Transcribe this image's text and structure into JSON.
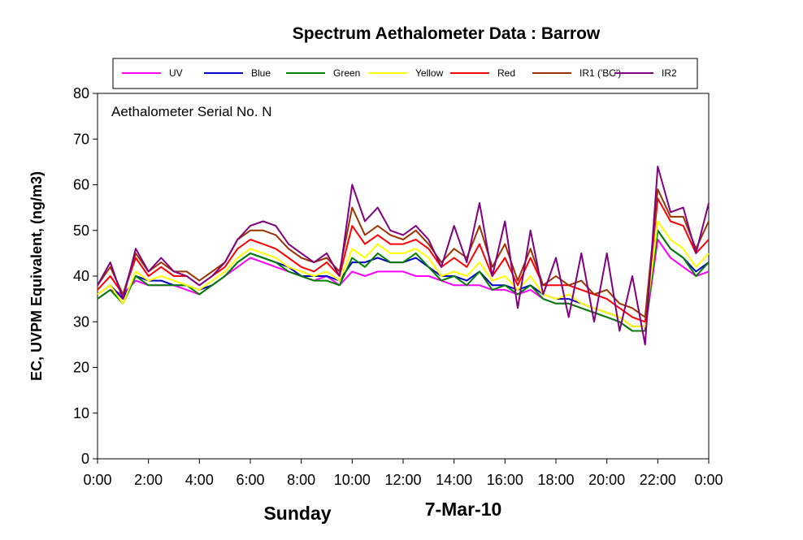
{
  "chart_data": {
    "type": "line",
    "title": "Spectrum Aethalometer Data  :  Barrow",
    "xlabel": "",
    "ylabel": "EC, UVPM Equivalent, (ng/m3)",
    "annotation": "Aethalometer  Serial No. N",
    "day_label": "Sunday",
    "date_label": "7-Mar-10",
    "ylim": [
      0,
      80
    ],
    "yticks": [
      0,
      10,
      20,
      30,
      40,
      50,
      60,
      70,
      80
    ],
    "xlim": [
      0,
      24
    ],
    "xtick_values": [
      0,
      2,
      4,
      6,
      8,
      10,
      12,
      14,
      16,
      18,
      20,
      22,
      24
    ],
    "xtick_labels": [
      "0:00",
      "2:00",
      "4:00",
      "6:00",
      "8:00",
      "10:00",
      "12:00",
      "14:00",
      "16:00",
      "18:00",
      "20:00",
      "22:00",
      "0:00"
    ],
    "grid": false,
    "legend_position": "top",
    "x_hours": [
      0,
      0.5,
      1,
      1.5,
      2,
      2.5,
      3,
      3.5,
      4,
      4.5,
      5,
      5.5,
      6,
      6.5,
      7,
      7.5,
      8,
      8.5,
      9,
      9.5,
      10,
      10.5,
      11,
      11.5,
      12,
      12.5,
      13,
      13.5,
      14,
      14.5,
      15,
      15.5,
      16,
      16.5,
      17,
      17.5,
      18,
      18.5,
      19,
      19.5,
      20,
      20.5,
      21,
      21.5,
      22,
      22.5,
      23,
      23.5,
      24
    ],
    "series": [
      {
        "name": "UV",
        "color": "#ff00ff",
        "values": [
          35,
          37,
          36,
          39,
          38,
          38,
          38,
          37,
          36,
          38,
          40,
          42,
          44,
          43,
          42,
          41,
          40,
          39,
          40,
          38,
          41,
          40,
          41,
          41,
          41,
          40,
          40,
          39,
          38,
          38,
          38,
          37,
          37,
          36,
          37,
          35,
          34,
          34,
          33,
          32,
          31,
          30,
          28,
          28,
          48,
          44,
          42,
          40,
          41
        ]
      },
      {
        "name": "Blue",
        "color": "#0000cc",
        "values": [
          36,
          38,
          35,
          40,
          39,
          39,
          38,
          38,
          37,
          38,
          40,
          43,
          45,
          44,
          43,
          42,
          40,
          40,
          40,
          39,
          43,
          43,
          44,
          43,
          43,
          44,
          42,
          40,
          40,
          39,
          41,
          38,
          38,
          37,
          38,
          36,
          35,
          35,
          34,
          33,
          32,
          31,
          29,
          29,
          50,
          46,
          44,
          41,
          43
        ]
      },
      {
        "name": "Green",
        "color": "#008000",
        "values": [
          35,
          37,
          34,
          40,
          38,
          38,
          38,
          38,
          36,
          38,
          40,
          43,
          45,
          44,
          43,
          41,
          40,
          39,
          39,
          38,
          44,
          42,
          45,
          43,
          43,
          45,
          42,
          39,
          40,
          38,
          41,
          37,
          38,
          36,
          38,
          35,
          34,
          34,
          33,
          32,
          31,
          30,
          28,
          28,
          50,
          46,
          44,
          40,
          43
        ]
      },
      {
        "name": "Yellow",
        "color": "#ffff00",
        "values": [
          36,
          38,
          34,
          41,
          39,
          40,
          39,
          38,
          37,
          39,
          41,
          44,
          46,
          45,
          44,
          42,
          41,
          40,
          41,
          39,
          46,
          44,
          47,
          45,
          45,
          46,
          44,
          40,
          41,
          40,
          43,
          39,
          40,
          37,
          40,
          36,
          35,
          36,
          34,
          33,
          32,
          31,
          29,
          29,
          52,
          48,
          46,
          42,
          45
        ]
      },
      {
        "name": "Red",
        "color": "#ff0000",
        "values": [
          37,
          40,
          36,
          44,
          40,
          42,
          40,
          40,
          38,
          40,
          42,
          46,
          48,
          47,
          46,
          44,
          42,
          41,
          43,
          40,
          51,
          47,
          49,
          47,
          47,
          48,
          46,
          42,
          44,
          42,
          47,
          40,
          44,
          38,
          44,
          38,
          38,
          38,
          37,
          36,
          35,
          33,
          31,
          30,
          57,
          52,
          51,
          45,
          48
        ]
      },
      {
        "name": "IR1 ('BC')",
        "color": "#993300",
        "values": [
          38,
          42,
          36,
          45,
          41,
          43,
          41,
          41,
          39,
          41,
          43,
          48,
          50,
          50,
          49,
          46,
          44,
          43,
          44,
          41,
          55,
          49,
          51,
          49,
          48,
          50,
          47,
          43,
          46,
          44,
          51,
          42,
          47,
          39,
          46,
          38,
          40,
          38,
          39,
          36,
          37,
          34,
          33,
          31,
          59,
          53,
          53,
          46,
          52
        ]
      },
      {
        "name": "IR2",
        "color": "#800080",
        "values": [
          38,
          43,
          35,
          46,
          41,
          44,
          41,
          40,
          38,
          40,
          43,
          48,
          51,
          52,
          51,
          47,
          45,
          43,
          45,
          40,
          60,
          52,
          55,
          50,
          49,
          51,
          48,
          42,
          51,
          43,
          56,
          40,
          52,
          33,
          50,
          36,
          44,
          31,
          45,
          30,
          45,
          28,
          40,
          25,
          64,
          54,
          55,
          45,
          56
        ]
      }
    ]
  }
}
